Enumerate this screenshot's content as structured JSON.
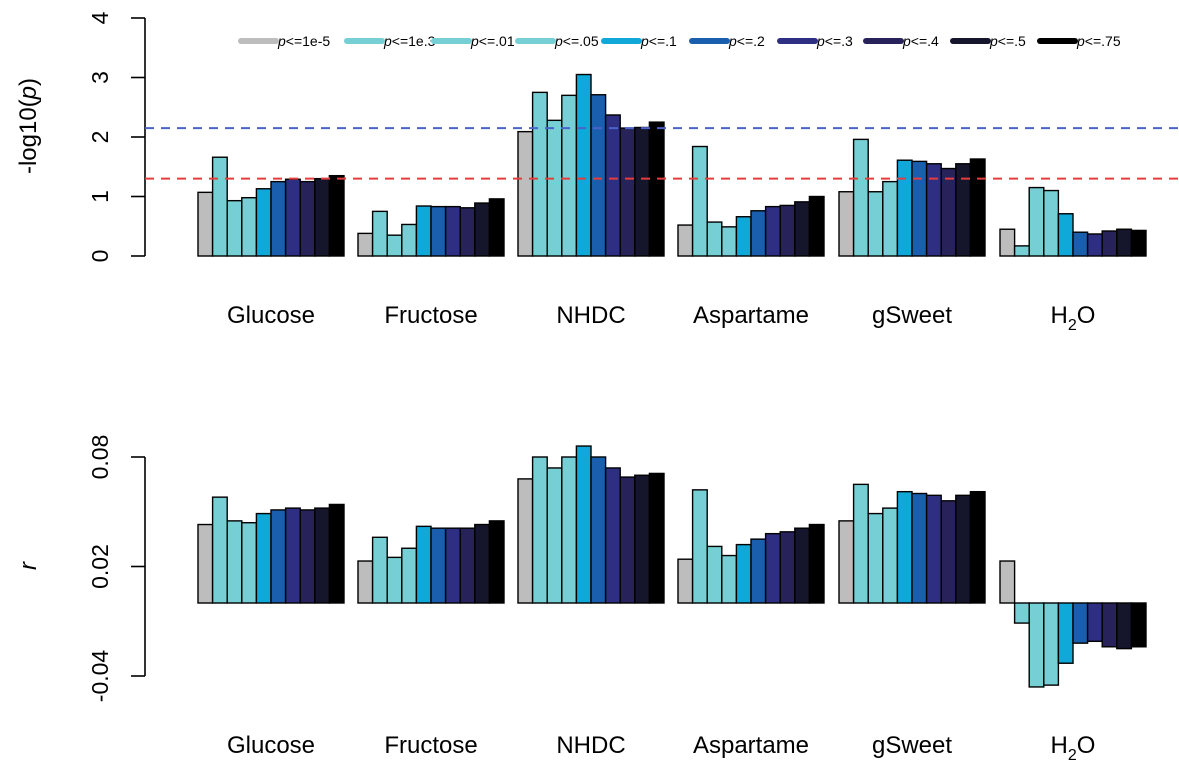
{
  "colors": {
    "thresholds": [
      "#bdbdbd",
      "#76cfd4",
      "#76cfd4",
      "#76cfd4",
      "#10a7d9",
      "#1a5fae",
      "#2e2f82",
      "#27235a",
      "#15152b",
      "#000000"
    ],
    "bonferroni_line": "#4b63c9",
    "nominal_line": "#e53d3d"
  },
  "legend": [
    {
      "prefix": "p",
      "label": "<=1e-5"
    },
    {
      "prefix": "p",
      "label": "<=1e.3"
    },
    {
      "prefix": "p",
      "label": "<=.01"
    },
    {
      "prefix": "p",
      "label": "<=.05"
    },
    {
      "prefix": "p",
      "label": "<=.1"
    },
    {
      "prefix": "p",
      "label": "<=.2"
    },
    {
      "prefix": "p",
      "label": "<=.3"
    },
    {
      "prefix": "p",
      "label": "<=.4"
    },
    {
      "prefix": "p",
      "label": "<=.5"
    },
    {
      "prefix": "p",
      "label": "<=.75"
    }
  ],
  "groups": [
    {
      "name": "Glucose",
      "sub": ""
    },
    {
      "name": "Fructose",
      "sub": ""
    },
    {
      "name": "NHDC",
      "sub": ""
    },
    {
      "name": "Aspartame",
      "sub": ""
    },
    {
      "name": "gSweet",
      "sub": ""
    },
    {
      "name": "H",
      "sub": "2",
      "post": "O"
    }
  ],
  "chart_data": [
    {
      "type": "bar",
      "ylabel_pre": "-log10(",
      "ylabel_italic": "p",
      "ylabel_post": ")",
      "ylim": [
        0,
        4
      ],
      "yticks": [
        "0",
        "1",
        "2",
        "3",
        "4"
      ],
      "reference_lines": [
        {
          "y": 2.15,
          "style": "dashed",
          "color": "blue"
        },
        {
          "y": 1.3,
          "style": "dashed",
          "color": "red"
        }
      ],
      "categories": [
        "Glucose",
        "Fructose",
        "NHDC",
        "Aspartame",
        "gSweet",
        "H2O"
      ],
      "series_values": [
        [
          1.07,
          1.66,
          0.93,
          0.98,
          1.13,
          1.25,
          1.29,
          1.25,
          1.3,
          1.35
        ],
        [
          0.38,
          0.75,
          0.35,
          0.53,
          0.84,
          0.83,
          0.83,
          0.81,
          0.89,
          0.96
        ],
        [
          2.09,
          2.75,
          2.28,
          2.7,
          3.05,
          2.71,
          2.37,
          2.15,
          2.16,
          2.25
        ],
        [
          0.52,
          1.84,
          0.57,
          0.49,
          0.66,
          0.76,
          0.83,
          0.85,
          0.91,
          1.0
        ],
        [
          1.08,
          1.96,
          1.08,
          1.25,
          1.61,
          1.59,
          1.55,
          1.47,
          1.55,
          1.63
        ],
        [
          0.45,
          0.17,
          1.15,
          1.1,
          0.71,
          0.4,
          0.37,
          0.42,
          0.45,
          0.43
        ]
      ]
    },
    {
      "type": "bar",
      "ylabel_italic": "r",
      "ylim": [
        -0.05,
        0.085
      ],
      "yticks": [
        "0.08",
        "0.02",
        "-0.04"
      ],
      "categories": [
        "Glucose",
        "Fructose",
        "NHDC",
        "Aspartame",
        "gSweet",
        "H2O"
      ],
      "series_values": [
        [
          0.043,
          0.058,
          0.045,
          0.044,
          0.049,
          0.051,
          0.052,
          0.051,
          0.052,
          0.054
        ],
        [
          0.023,
          0.036,
          0.025,
          0.03,
          0.042,
          0.041,
          0.041,
          0.041,
          0.043,
          0.045
        ],
        [
          0.068,
          0.08,
          0.074,
          0.08,
          0.086,
          0.08,
          0.074,
          0.069,
          0.07,
          0.071
        ],
        [
          0.024,
          0.062,
          0.031,
          0.026,
          0.032,
          0.035,
          0.038,
          0.039,
          0.041,
          0.043
        ],
        [
          0.045,
          0.065,
          0.049,
          0.052,
          0.061,
          0.06,
          0.059,
          0.056,
          0.059,
          0.061
        ],
        [
          0.023,
          -0.011,
          -0.046,
          -0.045,
          -0.033,
          -0.022,
          -0.021,
          -0.024,
          -0.025,
          -0.024
        ]
      ]
    }
  ]
}
